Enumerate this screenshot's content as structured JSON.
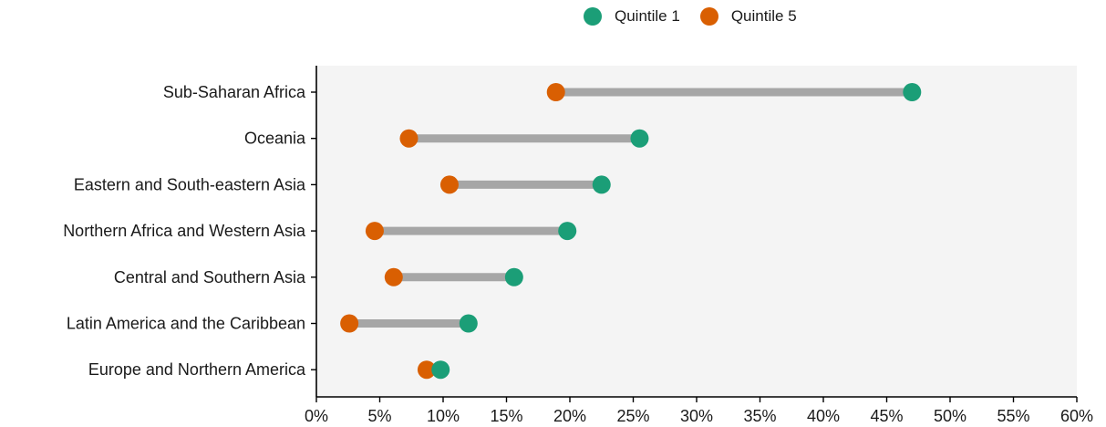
{
  "chart_data": {
    "type": "dumbbell",
    "categories": [
      "Sub-Saharan Africa",
      "Oceania",
      "Eastern and South-eastern Asia",
      "Northern Africa and Western Asia",
      "Central and Southern Asia",
      "Latin America and the Caribbean",
      "Europe and Northern America"
    ],
    "series": [
      {
        "name": "Quintile 1",
        "color": "#1b9e77",
        "values": [
          47.0,
          25.5,
          22.5,
          19.8,
          15.6,
          12.0,
          9.8
        ]
      },
      {
        "name": "Quintile 5",
        "color": "#d95f02",
        "values": [
          18.9,
          7.3,
          10.5,
          4.6,
          6.1,
          2.6,
          8.7
        ]
      }
    ],
    "x_ticks": [
      "0%",
      "5%",
      "10%",
      "15%",
      "20%",
      "25%",
      "30%",
      "35%",
      "40%",
      "45%",
      "50%",
      "55%",
      "60%"
    ],
    "xlim": [
      0,
      60
    ],
    "connector_color": "#a6a6a6",
    "panel_background": "#f4f4f4",
    "legend_position": "top",
    "grid": false
  }
}
